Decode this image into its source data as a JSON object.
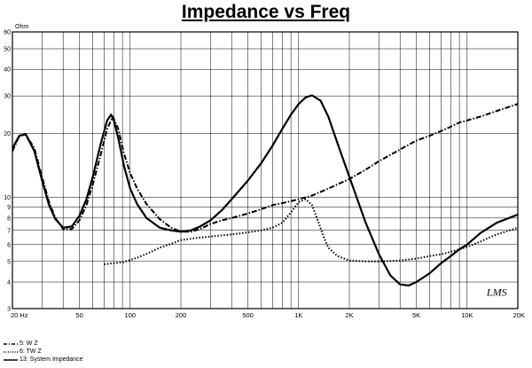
{
  "title": "Impedance vs Freq",
  "chart_data": {
    "type": "line",
    "title": "Impedance vs Freq",
    "ylabel": "Ohm",
    "xlabel": "",
    "x_scale": "log",
    "y_scale": "log",
    "xlim": [
      20,
      20000
    ],
    "ylim": [
      3,
      60
    ],
    "grid": true,
    "watermark": "LMS",
    "x_ticks": [
      {
        "value": 20,
        "label": "20  Hz"
      },
      {
        "value": 50,
        "label": "50"
      },
      {
        "value": 100,
        "label": "100"
      },
      {
        "value": 200,
        "label": "200"
      },
      {
        "value": 500,
        "label": "500"
      },
      {
        "value": 1000,
        "label": "1K"
      },
      {
        "value": 2000,
        "label": "2K"
      },
      {
        "value": 5000,
        "label": "5K"
      },
      {
        "value": 10000,
        "label": "10K"
      },
      {
        "value": 20000,
        "label": "20K"
      }
    ],
    "y_ticks": [
      {
        "value": 3,
        "label": "3"
      },
      {
        "value": 4,
        "label": "4"
      },
      {
        "value": 5,
        "label": "5"
      },
      {
        "value": 6,
        "label": "6"
      },
      {
        "value": 7,
        "label": "7"
      },
      {
        "value": 8,
        "label": "8"
      },
      {
        "value": 9,
        "label": "9"
      },
      {
        "value": 10,
        "label": "10"
      },
      {
        "value": 20,
        "label": "20"
      },
      {
        "value": 30,
        "label": "30"
      },
      {
        "value": 40,
        "label": "40"
      },
      {
        "value": 50,
        "label": "50"
      },
      {
        "value": 60,
        "label": "60"
      }
    ],
    "legend_position": "bottom-left",
    "series": [
      {
        "name": "5: W Z",
        "style": "dashdot",
        "color": "#000000",
        "points": [
          [
            20,
            16.5
          ],
          [
            22,
            19.5
          ],
          [
            24,
            19.8
          ],
          [
            27,
            17
          ],
          [
            30,
            12.5
          ],
          [
            33,
            9.5
          ],
          [
            36,
            8
          ],
          [
            40,
            7.1
          ],
          [
            45,
            7.1
          ],
          [
            50,
            7.8
          ],
          [
            55,
            9.2
          ],
          [
            60,
            11.5
          ],
          [
            67,
            16
          ],
          [
            73,
            21
          ],
          [
            79,
            24
          ],
          [
            85,
            21
          ],
          [
            92,
            16
          ],
          [
            100,
            13
          ],
          [
            110,
            11
          ],
          [
            125,
            9.3
          ],
          [
            150,
            7.9
          ],
          [
            175,
            7.2
          ],
          [
            200,
            6.9
          ],
          [
            230,
            6.9
          ],
          [
            260,
            7.1
          ],
          [
            300,
            7.5
          ],
          [
            350,
            7.8
          ],
          [
            400,
            8
          ],
          [
            500,
            8.4
          ],
          [
            600,
            8.8
          ],
          [
            700,
            9.2
          ],
          [
            800,
            9.4
          ],
          [
            900,
            9.6
          ],
          [
            1000,
            9.8
          ],
          [
            1200,
            10.2
          ],
          [
            1500,
            11
          ],
          [
            2000,
            12.2
          ],
          [
            2500,
            13.5
          ],
          [
            3000,
            14.8
          ],
          [
            4000,
            16.8
          ],
          [
            5000,
            18.5
          ],
          [
            6000,
            19.5
          ],
          [
            7000,
            20.5
          ],
          [
            8000,
            21.5
          ],
          [
            9000,
            22.5
          ],
          [
            10000,
            23
          ],
          [
            12000,
            24
          ],
          [
            15000,
            25.5
          ],
          [
            20000,
            27.5
          ]
        ]
      },
      {
        "name": "6: TW Z",
        "style": "dotted",
        "color": "#000000",
        "points": [
          [
            70,
            4.85
          ],
          [
            90,
            4.95
          ],
          [
            110,
            5.2
          ],
          [
            130,
            5.5
          ],
          [
            150,
            5.8
          ],
          [
            180,
            6.1
          ],
          [
            200,
            6.3
          ],
          [
            250,
            6.45
          ],
          [
            300,
            6.55
          ],
          [
            400,
            6.7
          ],
          [
            500,
            6.85
          ],
          [
            600,
            7
          ],
          [
            700,
            7.2
          ],
          [
            800,
            7.6
          ],
          [
            900,
            8.5
          ],
          [
            1000,
            9.5
          ],
          [
            1100,
            9.8
          ],
          [
            1200,
            9.2
          ],
          [
            1300,
            7.8
          ],
          [
            1400,
            6.6
          ],
          [
            1500,
            5.8
          ],
          [
            1700,
            5.3
          ],
          [
            2000,
            5.05
          ],
          [
            2500,
            5.0
          ],
          [
            3000,
            5.0
          ],
          [
            4000,
            5.05
          ],
          [
            5000,
            5.15
          ],
          [
            6000,
            5.3
          ],
          [
            7000,
            5.4
          ],
          [
            8000,
            5.55
          ],
          [
            9000,
            5.7
          ],
          [
            10000,
            5.85
          ],
          [
            12000,
            6.2
          ],
          [
            15000,
            6.7
          ],
          [
            20000,
            7.2
          ]
        ]
      },
      {
        "name": "13: System Impedance",
        "style": "solid",
        "color": "#000000",
        "points": [
          [
            20,
            17
          ],
          [
            22,
            19.5
          ],
          [
            24,
            19.8
          ],
          [
            27,
            16.5
          ],
          [
            30,
            12
          ],
          [
            33,
            9.2
          ],
          [
            36,
            7.9
          ],
          [
            40,
            7.2
          ],
          [
            45,
            7.3
          ],
          [
            50,
            8.2
          ],
          [
            55,
            9.8
          ],
          [
            60,
            12.5
          ],
          [
            67,
            18
          ],
          [
            73,
            23
          ],
          [
            77,
            24.5
          ],
          [
            80,
            23
          ],
          [
            85,
            19
          ],
          [
            92,
            14
          ],
          [
            100,
            11
          ],
          [
            110,
            9.3
          ],
          [
            125,
            8
          ],
          [
            150,
            7.2
          ],
          [
            175,
            7
          ],
          [
            200,
            6.9
          ],
          [
            230,
            7
          ],
          [
            260,
            7.3
          ],
          [
            300,
            7.8
          ],
          [
            350,
            8.7
          ],
          [
            400,
            9.8
          ],
          [
            500,
            12
          ],
          [
            600,
            14.5
          ],
          [
            700,
            17.5
          ],
          [
            800,
            21
          ],
          [
            900,
            24.5
          ],
          [
            1000,
            27.5
          ],
          [
            1100,
            29.5
          ],
          [
            1200,
            30.2
          ],
          [
            1350,
            28.5
          ],
          [
            1500,
            24
          ],
          [
            1700,
            18
          ],
          [
            2000,
            12.5
          ],
          [
            2500,
            7.6
          ],
          [
            3000,
            5.4
          ],
          [
            3500,
            4.3
          ],
          [
            4000,
            3.9
          ],
          [
            4500,
            3.85
          ],
          [
            5000,
            4.0
          ],
          [
            6000,
            4.4
          ],
          [
            7000,
            4.9
          ],
          [
            8000,
            5.3
          ],
          [
            9000,
            5.7
          ],
          [
            10000,
            6.0
          ],
          [
            12000,
            6.8
          ],
          [
            15000,
            7.6
          ],
          [
            20000,
            8.3
          ]
        ]
      }
    ]
  },
  "legend": {
    "items": [
      {
        "label": "5: W Z",
        "style": "dashdot"
      },
      {
        "label": "6: TW Z",
        "style": "dotted"
      },
      {
        "label": "13: System Impedance",
        "style": "solid"
      }
    ]
  }
}
